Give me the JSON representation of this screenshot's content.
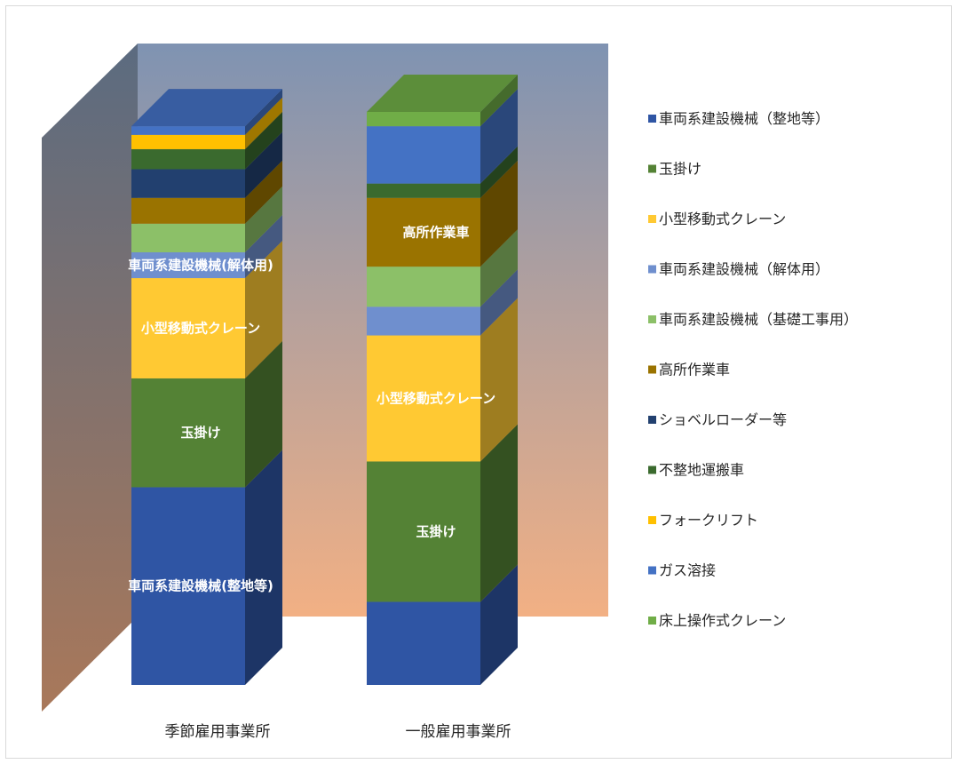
{
  "chart_data": {
    "type": "bar",
    "stacked": true,
    "percent_stacked": true,
    "three_d": true,
    "title": "",
    "xlabel": "",
    "ylabel": "",
    "ylim": [
      0,
      100
    ],
    "grid": false,
    "legend_position": "right",
    "categories": [
      "季節雇用事業所",
      "一般雇用事業所"
    ],
    "series": [
      {
        "name": "車両系建設機械（整地等）",
        "color": "#2f55a4",
        "values": [
          34.5,
          14.5
        ],
        "data_label": "車両系建設機械(整地等)",
        "show_label": [
          true,
          false
        ]
      },
      {
        "name": "玉掛け",
        "color": "#548235",
        "values": [
          19.0,
          24.5
        ],
        "data_label": "玉掛け",
        "show_label": [
          true,
          true
        ]
      },
      {
        "name": "小型移動式クレーン",
        "color": "#ffc933",
        "values": [
          17.5,
          22.0
        ],
        "data_label": "小型移動式クレーン",
        "show_label": [
          true,
          true
        ]
      },
      {
        "name": "車両系建設機械（解体用）",
        "color": "#6f8fce",
        "values": [
          4.5,
          5.0
        ],
        "data_label": "車両系建設機械(解体用)",
        "show_label": [
          true,
          false
        ]
      },
      {
        "name": "車両系建設機械（基礎工事用）",
        "color": "#8cc068",
        "values": [
          5.0,
          7.0
        ],
        "data_label": "",
        "show_label": [
          false,
          false
        ]
      },
      {
        "name": "高所作業車",
        "color": "#9a7300",
        "values": [
          4.5,
          12.0
        ],
        "data_label": "高所作業車",
        "show_label": [
          false,
          true
        ]
      },
      {
        "name": "ショベルローダー等",
        "color": "#22406f",
        "values": [
          5.0,
          0.0
        ],
        "data_label": "",
        "show_label": [
          false,
          false
        ]
      },
      {
        "name": "不整地運搬車",
        "color": "#3a6a2e",
        "values": [
          3.5,
          2.5
        ],
        "data_label": "",
        "show_label": [
          false,
          false
        ]
      },
      {
        "name": "フォークリフト",
        "color": "#ffc000",
        "values": [
          2.5,
          0.0
        ],
        "data_label": "",
        "show_label": [
          false,
          false
        ]
      },
      {
        "name": "ガス溶接",
        "color": "#4472c4",
        "values": [
          1.5,
          10.0
        ],
        "data_label": "",
        "show_label": [
          false,
          false
        ]
      },
      {
        "name": "床上操作式クレーン",
        "color": "#70ad47",
        "values": [
          0.0,
          2.5
        ],
        "data_label": "",
        "show_label": [
          false,
          false
        ]
      }
    ]
  },
  "colors": {
    "backwall_top": "#7f93b2",
    "backwall_bottom": "#f2b084",
    "sidewall_top": "#5b6b80",
    "sidewall_bottom": "#a9785a",
    "label_text": "#ffffff",
    "axis_text": "#262626"
  }
}
